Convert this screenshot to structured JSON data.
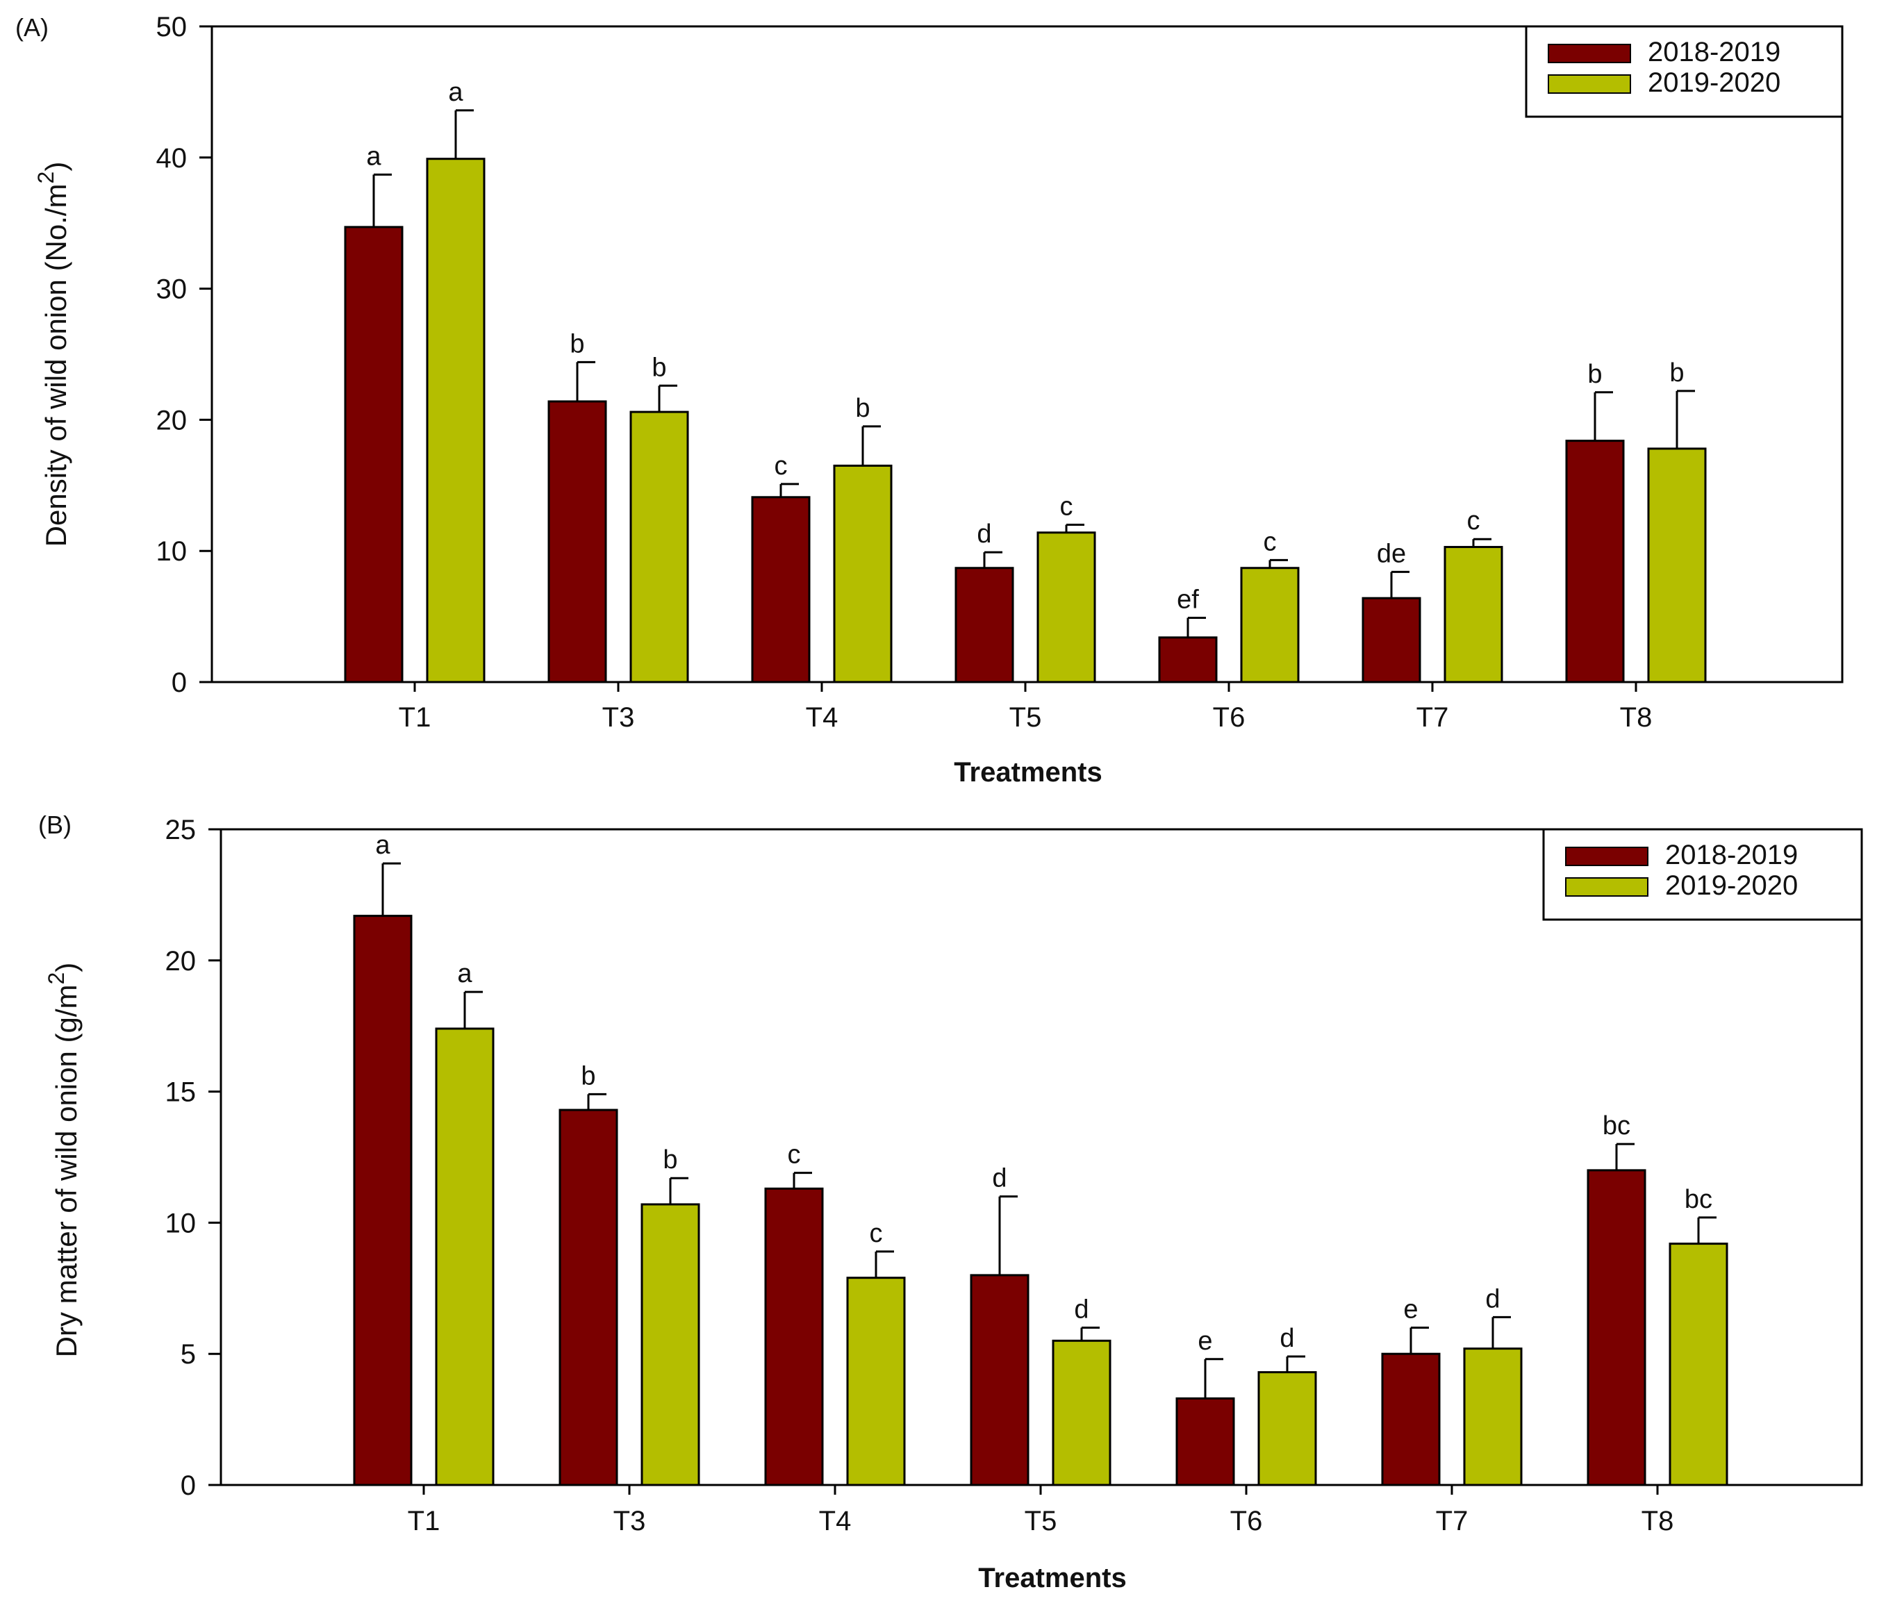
{
  "chart_data": [
    {
      "type": "bar",
      "panel_label": "(A)",
      "xlabel": "Treatments",
      "ylabel_main": "Density of wild onion (No./m",
      "ylabel_sup": "2",
      "ylabel_tail": ")",
      "ylim": [
        0,
        50
      ],
      "yticks": [
        0,
        10,
        20,
        30,
        40,
        50
      ],
      "categories": [
        "T1",
        "T3",
        "T4",
        "T5",
        "T6",
        "T7",
        "T8"
      ],
      "legend_position": "top-right",
      "series": [
        {
          "name": "2018-2019",
          "color": "#7a0000",
          "values": [
            34.7,
            21.4,
            14.1,
            8.7,
            3.4,
            6.4,
            18.4
          ],
          "errors": [
            4.0,
            3.0,
            1.0,
            1.2,
            1.5,
            2.0,
            3.7
          ],
          "letters": [
            "a",
            "b",
            "c",
            "d",
            "ef",
            "de",
            "b"
          ]
        },
        {
          "name": "2019-2020",
          "color": "#b4be00",
          "values": [
            39.9,
            20.6,
            16.5,
            11.4,
            8.7,
            10.3,
            17.8
          ],
          "errors": [
            3.7,
            2.0,
            3.0,
            0.6,
            0.6,
            0.6,
            4.4
          ],
          "letters": [
            "a",
            "b",
            "b",
            "c",
            "c",
            "c",
            "b"
          ]
        }
      ]
    },
    {
      "type": "bar",
      "panel_label": "(B)",
      "xlabel": "Treatments",
      "ylabel_main": "Dry matter of wild onion (g/m",
      "ylabel_sup": "2",
      "ylabel_tail": ")",
      "ylim": [
        0,
        25
      ],
      "yticks": [
        0,
        5,
        10,
        15,
        20,
        25
      ],
      "categories": [
        "T1",
        "T3",
        "T4",
        "T5",
        "T6",
        "T7",
        "T8"
      ],
      "legend_position": "top-right",
      "series": [
        {
          "name": "2018-2019",
          "color": "#7a0000",
          "values": [
            21.7,
            14.3,
            11.3,
            8.0,
            3.3,
            5.0,
            12.0
          ],
          "errors": [
            2.0,
            0.6,
            0.6,
            3.0,
            1.5,
            1.0,
            1.0
          ],
          "letters": [
            "a",
            "b",
            "c",
            "d",
            "e",
            "e",
            "bc"
          ]
        },
        {
          "name": "2019-2020",
          "color": "#b4be00",
          "values": [
            17.4,
            10.7,
            7.9,
            5.5,
            4.3,
            5.2,
            9.2
          ],
          "errors": [
            1.4,
            1.0,
            1.0,
            0.5,
            0.6,
            1.2,
            1.0
          ],
          "letters": [
            "a",
            "b",
            "c",
            "d",
            "d",
            "d",
            "bc"
          ]
        }
      ]
    }
  ]
}
